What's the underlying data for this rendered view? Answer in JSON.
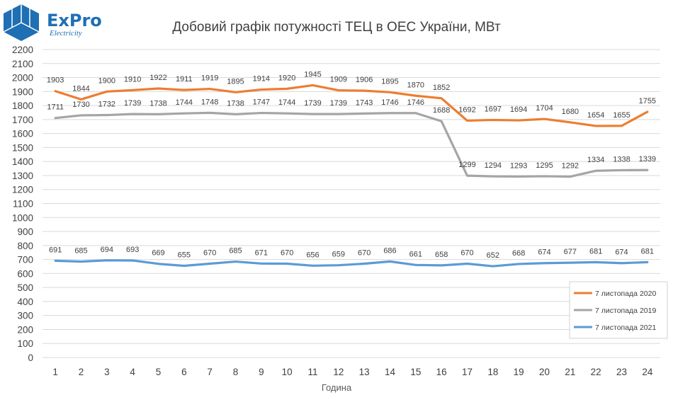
{
  "logo": {
    "brand": "ExPro",
    "tagline": "Electricity",
    "brand_color": "#1f6fb5"
  },
  "chart_data": {
    "type": "line",
    "title": "Добовий графік потужності ТЕЦ в ОЕС України, МВт",
    "xlabel": "Година",
    "ylabel": "",
    "ylim": [
      0,
      2200
    ],
    "ytick_step": 100,
    "grid": true,
    "legend_position": "bottom-right",
    "categories": [
      "1",
      "2",
      "3",
      "4",
      "5",
      "6",
      "7",
      "8",
      "9",
      "10",
      "11",
      "12",
      "13",
      "14",
      "15",
      "16",
      "17",
      "18",
      "19",
      "20",
      "21",
      "22",
      "23",
      "24"
    ],
    "series": [
      {
        "name": "7 листопада 2020",
        "color": "#ed7d31",
        "values": [
          1903,
          1844,
          1900,
          1910,
          1922,
          1911,
          1919,
          1895,
          1914,
          1920,
          1945,
          1909,
          1906,
          1895,
          1870,
          1852,
          1692,
          1697,
          1694,
          1704,
          1680,
          1654,
          1655,
          1755
        ]
      },
      {
        "name": "7 листопада 2019",
        "color": "#a5a5a5",
        "values": [
          1711,
          1730,
          1732,
          1739,
          1738,
          1744,
          1748,
          1738,
          1747,
          1744,
          1739,
          1739,
          1743,
          1746,
          1746,
          1688,
          1299,
          1294,
          1293,
          1295,
          1292,
          1334,
          1338,
          1339
        ]
      },
      {
        "name": "7 листопада 2021",
        "color": "#5b9bd5",
        "values": [
          691,
          685,
          694,
          693,
          669,
          655,
          670,
          685,
          671,
          670,
          656,
          659,
          670,
          686,
          661,
          658,
          670,
          652,
          668,
          674,
          677,
          681,
          674,
          681
        ]
      }
    ]
  }
}
